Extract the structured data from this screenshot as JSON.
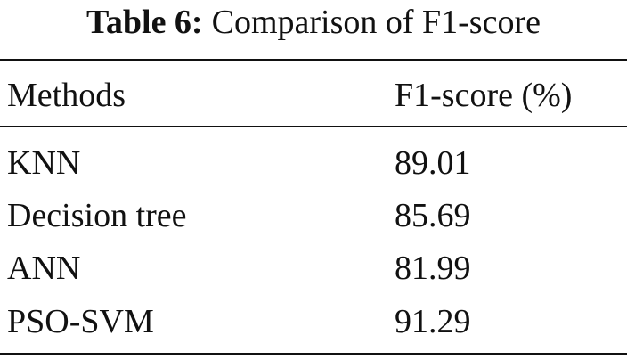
{
  "caption": {
    "label": "Table 6:",
    "text": "Comparison of F1-score"
  },
  "table": {
    "header": [
      "Methods",
      "F1-score (%)"
    ],
    "rows": [
      [
        "KNN",
        "89.01"
      ],
      [
        "Decision tree",
        "85.69"
      ],
      [
        "ANN",
        "81.99"
      ],
      [
        "PSO-SVM",
        "91.29"
      ]
    ]
  }
}
